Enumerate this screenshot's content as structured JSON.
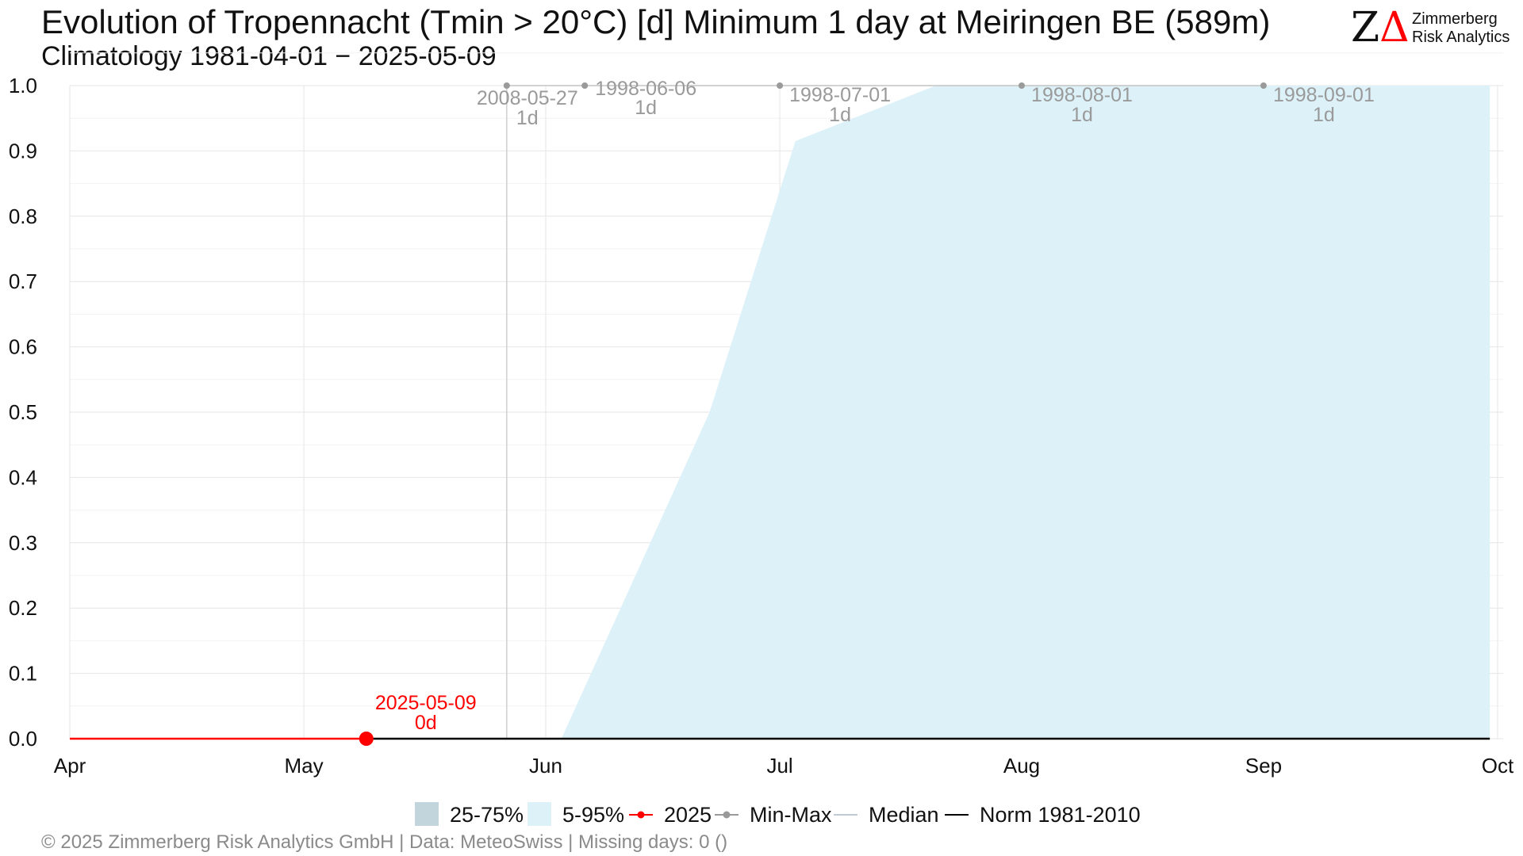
{
  "title": "Evolution of Tropennacht (Tmin > 20°C) [d] Minimum 1 day at Meiringen  BE (589m)",
  "subtitle": "Climatology 1981-04-01 − 2025-05-09",
  "logo": {
    "glyph": "ZΔ",
    "line1": "Zimmerberg",
    "line2": "Risk Analytics",
    "accent": "#ff0000"
  },
  "footer": "©  2025 Zimmerberg Risk Analytics GmbH | Data: MeteoSwiss | Missing days: 0 ()",
  "colors": {
    "band_25_75": "#c2d5dc",
    "band_5_95": "#ddf1f9",
    "current": "#ff0000",
    "minmax": "#9a9a9a",
    "median": "#aab8c8",
    "norm": "#000000",
    "grid": "#e6e6e6"
  },
  "legend": [
    {
      "key": "band_25_75",
      "label": "25-75%",
      "kind": "box"
    },
    {
      "key": "band_5_95",
      "label": "5-95%",
      "kind": "box"
    },
    {
      "key": "current",
      "label": "2025",
      "kind": "line-dot"
    },
    {
      "key": "minmax",
      "label": "Min-Max",
      "kind": "line-dot"
    },
    {
      "key": "median",
      "label": "Median",
      "kind": "line"
    },
    {
      "key": "norm",
      "label": "Norm 1981-2010",
      "kind": "line"
    }
  ],
  "chart_data": {
    "type": "area",
    "grid": true,
    "legend_position": "bottom",
    "x_range": [
      "1981-04-01",
      "1981-10-01"
    ],
    "x_ticks": [
      {
        "date": "04-01",
        "label": "Apr"
      },
      {
        "date": "05-01",
        "label": "May"
      },
      {
        "date": "06-01",
        "label": "Jun"
      },
      {
        "date": "07-01",
        "label": "Jul"
      },
      {
        "date": "08-01",
        "label": "Aug"
      },
      {
        "date": "09-01",
        "label": "Sep"
      },
      {
        "date": "10-01",
        "label": "Oct"
      }
    ],
    "ylim": [
      0,
      1.0
    ],
    "y_ticks": [
      0.0,
      0.1,
      0.2,
      0.3,
      0.4,
      0.5,
      0.6,
      0.7,
      0.8,
      0.9,
      1.0
    ],
    "y_tick_labels": [
      "0.0",
      "0.1",
      "0.2",
      "0.3",
      "0.4",
      "0.5",
      "0.6",
      "0.7",
      "0.8",
      "0.9",
      "1.0"
    ],
    "band_5_95": {
      "dates": [
        "06-03",
        "06-22",
        "07-03",
        "07-21",
        "09-30"
      ],
      "lower": [
        0,
        0,
        0,
        0,
        0
      ],
      "upper": [
        0,
        0.5,
        0.915,
        1.0,
        1.0
      ]
    },
    "band_25_75": {
      "dates": [],
      "lower": [],
      "upper": []
    },
    "median": {
      "dates": [
        "04-01",
        "09-30"
      ],
      "values": [
        0,
        0
      ]
    },
    "norm": {
      "dates": [
        "05-09",
        "09-30"
      ],
      "values": [
        0,
        0
      ]
    },
    "current_series": {
      "name": "2025",
      "dates": [
        "04-01",
        "05-09"
      ],
      "values": [
        0,
        0
      ],
      "last": {
        "date": "05-09",
        "value": 0,
        "label_date": "2025-05-09",
        "label_value": "0d"
      }
    },
    "min_max": {
      "dates": [
        "05-27",
        "06-06",
        "07-01",
        "08-01",
        "09-01"
      ],
      "values": [
        1,
        1,
        1,
        1,
        1
      ],
      "labels": [
        {
          "date": "05-27",
          "label_date": "2008-05-27",
          "label_value": "1d"
        },
        {
          "date": "06-06",
          "label_date": "1998-06-06",
          "label_value": "1d"
        },
        {
          "date": "07-01",
          "label_date": "1998-07-01",
          "label_value": "1d"
        },
        {
          "date": "08-01",
          "label_date": "1998-08-01",
          "label_value": "1d"
        },
        {
          "date": "09-01",
          "label_date": "1998-09-01",
          "label_value": "1d"
        }
      ]
    },
    "marker_vline_date": "05-27"
  }
}
